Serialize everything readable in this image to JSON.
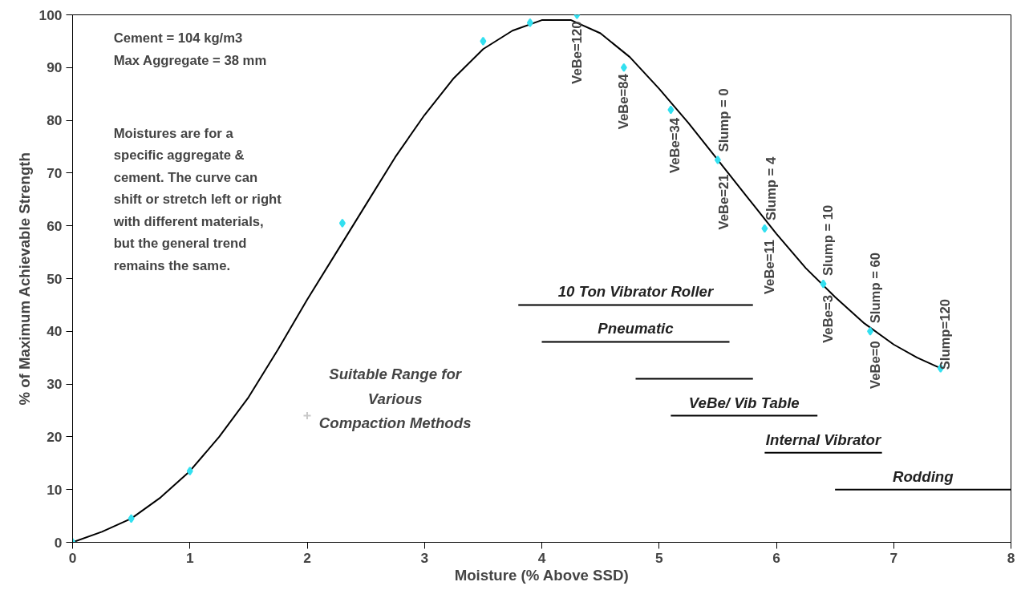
{
  "chart_data": {
    "type": "scatter",
    "xlabel": "Moisture (% Above SSD)",
    "ylabel": "% of Maximum Achievable Strength",
    "xlim": [
      0,
      8
    ],
    "ylim": [
      0,
      100
    ],
    "xticks": [
      0,
      1,
      2,
      3,
      4,
      5,
      6,
      7,
      8
    ],
    "yticks": [
      0,
      10,
      20,
      30,
      40,
      50,
      60,
      70,
      80,
      90,
      100
    ],
    "grid": false,
    "series": [
      {
        "type": "line",
        "color": "#000000",
        "x": [
          0,
          0.25,
          0.5,
          0.75,
          1,
          1.25,
          1.5,
          1.75,
          2,
          2.25,
          2.5,
          2.75,
          3,
          3.25,
          3.5,
          3.75,
          4,
          4.25,
          4.5,
          4.75,
          5,
          5.25,
          5.5,
          5.75,
          6,
          6.25,
          6.5,
          6.75,
          7,
          7.2,
          7.4
        ],
        "values": [
          0,
          2,
          4.5,
          8.5,
          13.5,
          20,
          27.5,
          36.5,
          46,
          55,
          64,
          73,
          81,
          88,
          93.5,
          97,
          99,
          99,
          96.5,
          92,
          86,
          79.5,
          72.5,
          65.5,
          58.5,
          52,
          46.5,
          41.5,
          37.5,
          35,
          33
        ]
      },
      {
        "marker": "diamond",
        "color": "#33e0f0",
        "x": [
          0,
          0.5,
          1,
          2.3,
          3.5,
          3.9,
          4.3,
          4.7,
          5.1,
          5.5,
          5.9,
          6.4,
          6.8,
          7.4
        ],
        "values": [
          0,
          4.5,
          13.5,
          60.5,
          95,
          98.5,
          100,
          90,
          82,
          72.5,
          59.5,
          49,
          40,
          33
        ]
      },
      {
        "marker": "cross",
        "color": "#c8c8c8",
        "x": [
          2
        ],
        "values": [
          24
        ]
      },
      {
        "type": "line",
        "name": "10 Ton Vibrator Roller",
        "color": "#000000",
        "x": [
          3.8,
          5.8
        ],
        "values": [
          45,
          45
        ]
      },
      {
        "type": "line",
        "name": "Pneumatic",
        "color": "#000000",
        "x": [
          4.0,
          5.6
        ],
        "values": [
          38,
          38
        ]
      },
      {
        "type": "line",
        "color": "#000000",
        "x": [
          4.8,
          5.8
        ],
        "values": [
          31,
          31
        ]
      },
      {
        "type": "line",
        "name": "VeBe/ Vib Table",
        "color": "#000000",
        "x": [
          5.1,
          6.35
        ],
        "values": [
          24,
          24
        ]
      },
      {
        "type": "line",
        "name": "Internal Vibrator",
        "color": "#000000",
        "x": [
          5.9,
          6.9
        ],
        "values": [
          17,
          17
        ]
      },
      {
        "type": "line",
        "name": "Rodding",
        "color": "#000000",
        "x": [
          6.5,
          8.0
        ],
        "values": [
          10,
          10
        ]
      }
    ],
    "annotations": [
      "Cement = 104 kg/m3\nMax Aggregate = 38 mm",
      "Moistures are for a\nspecific aggregate &\ncement.  The curve can\nshift or stretch left or right\nwith different materials,\nbut the general trend\nremains the same.",
      "Suitable Range for\nVarious\nCompaction Methods",
      {
        "text": "VeBe=120",
        "x": 4.3,
        "y": 100
      },
      {
        "text": "VeBe=84",
        "x": 4.7,
        "y": 90
      },
      {
        "text": "VeBe=34",
        "x": 5.1,
        "y": 82
      },
      {
        "text": "Slump = 0",
        "x": 5.5,
        "y": 72.5
      },
      {
        "text": "VeBe=21",
        "x": 5.5,
        "y": 72.5
      },
      {
        "text": "Slump = 4",
        "x": 5.9,
        "y": 59.5
      },
      {
        "text": "VeBe=11",
        "x": 5.9,
        "y": 59.5
      },
      {
        "text": "Slump = 10",
        "x": 6.4,
        "y": 49
      },
      {
        "text": "VeBe=3",
        "x": 6.4,
        "y": 49
      },
      {
        "text": "Slump = 60",
        "x": 6.8,
        "y": 40
      },
      {
        "text": "VeBe=0",
        "x": 6.8,
        "y": 40
      },
      {
        "text": "Slump=120",
        "x": 7.4,
        "y": 33
      }
    ]
  }
}
